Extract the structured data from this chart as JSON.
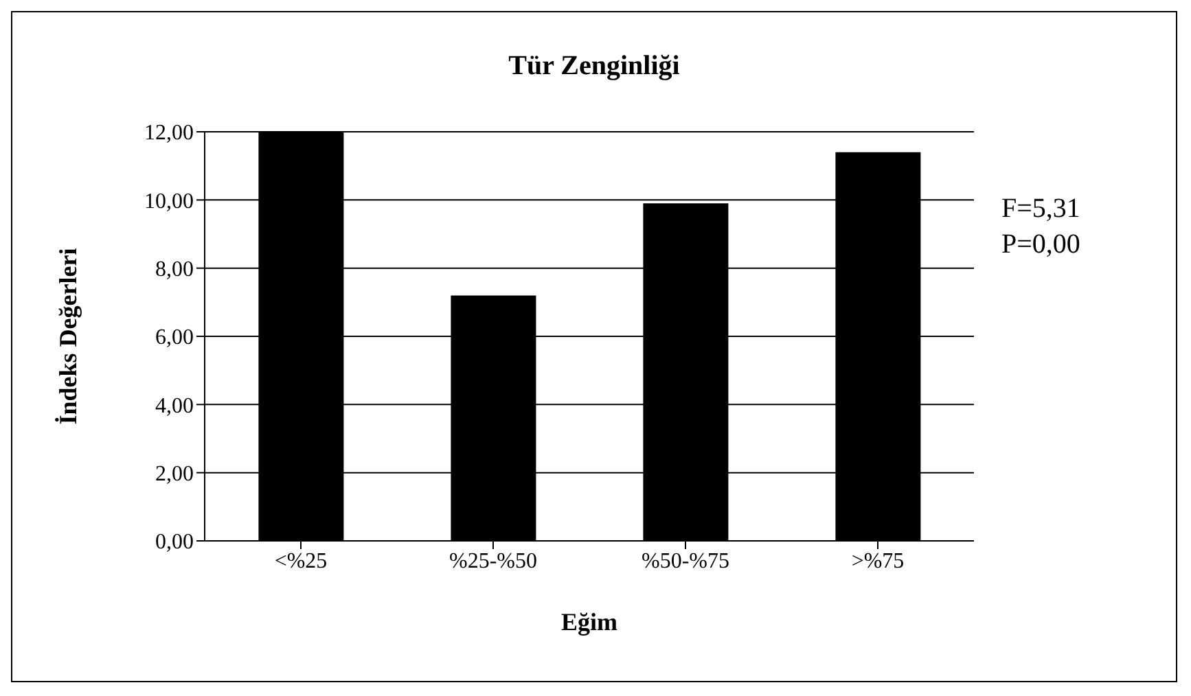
{
  "chart_data": {
    "type": "bar",
    "title": "Tür Zenginliği",
    "xlabel": "Eğim",
    "ylabel": "İndeks Değerleri",
    "categories": [
      "<%25",
      "%25-%50",
      "%50-%75",
      ">%75"
    ],
    "values": [
      12.0,
      7.2,
      9.9,
      11.4
    ],
    "color": "#000000",
    "ylim": [
      0,
      12
    ],
    "yticks": [
      {
        "value": 0,
        "label": "0,00"
      },
      {
        "value": 2,
        "label": "2,00"
      },
      {
        "value": 4,
        "label": "4,00"
      },
      {
        "value": 6,
        "label": "6,00"
      },
      {
        "value": 8,
        "label": "8,00"
      },
      {
        "value": 10,
        "label": "10,00"
      },
      {
        "value": 12,
        "label": "12,00"
      }
    ],
    "grid": "y",
    "annotations": [
      "F=5,31",
      "P=0,00"
    ]
  }
}
